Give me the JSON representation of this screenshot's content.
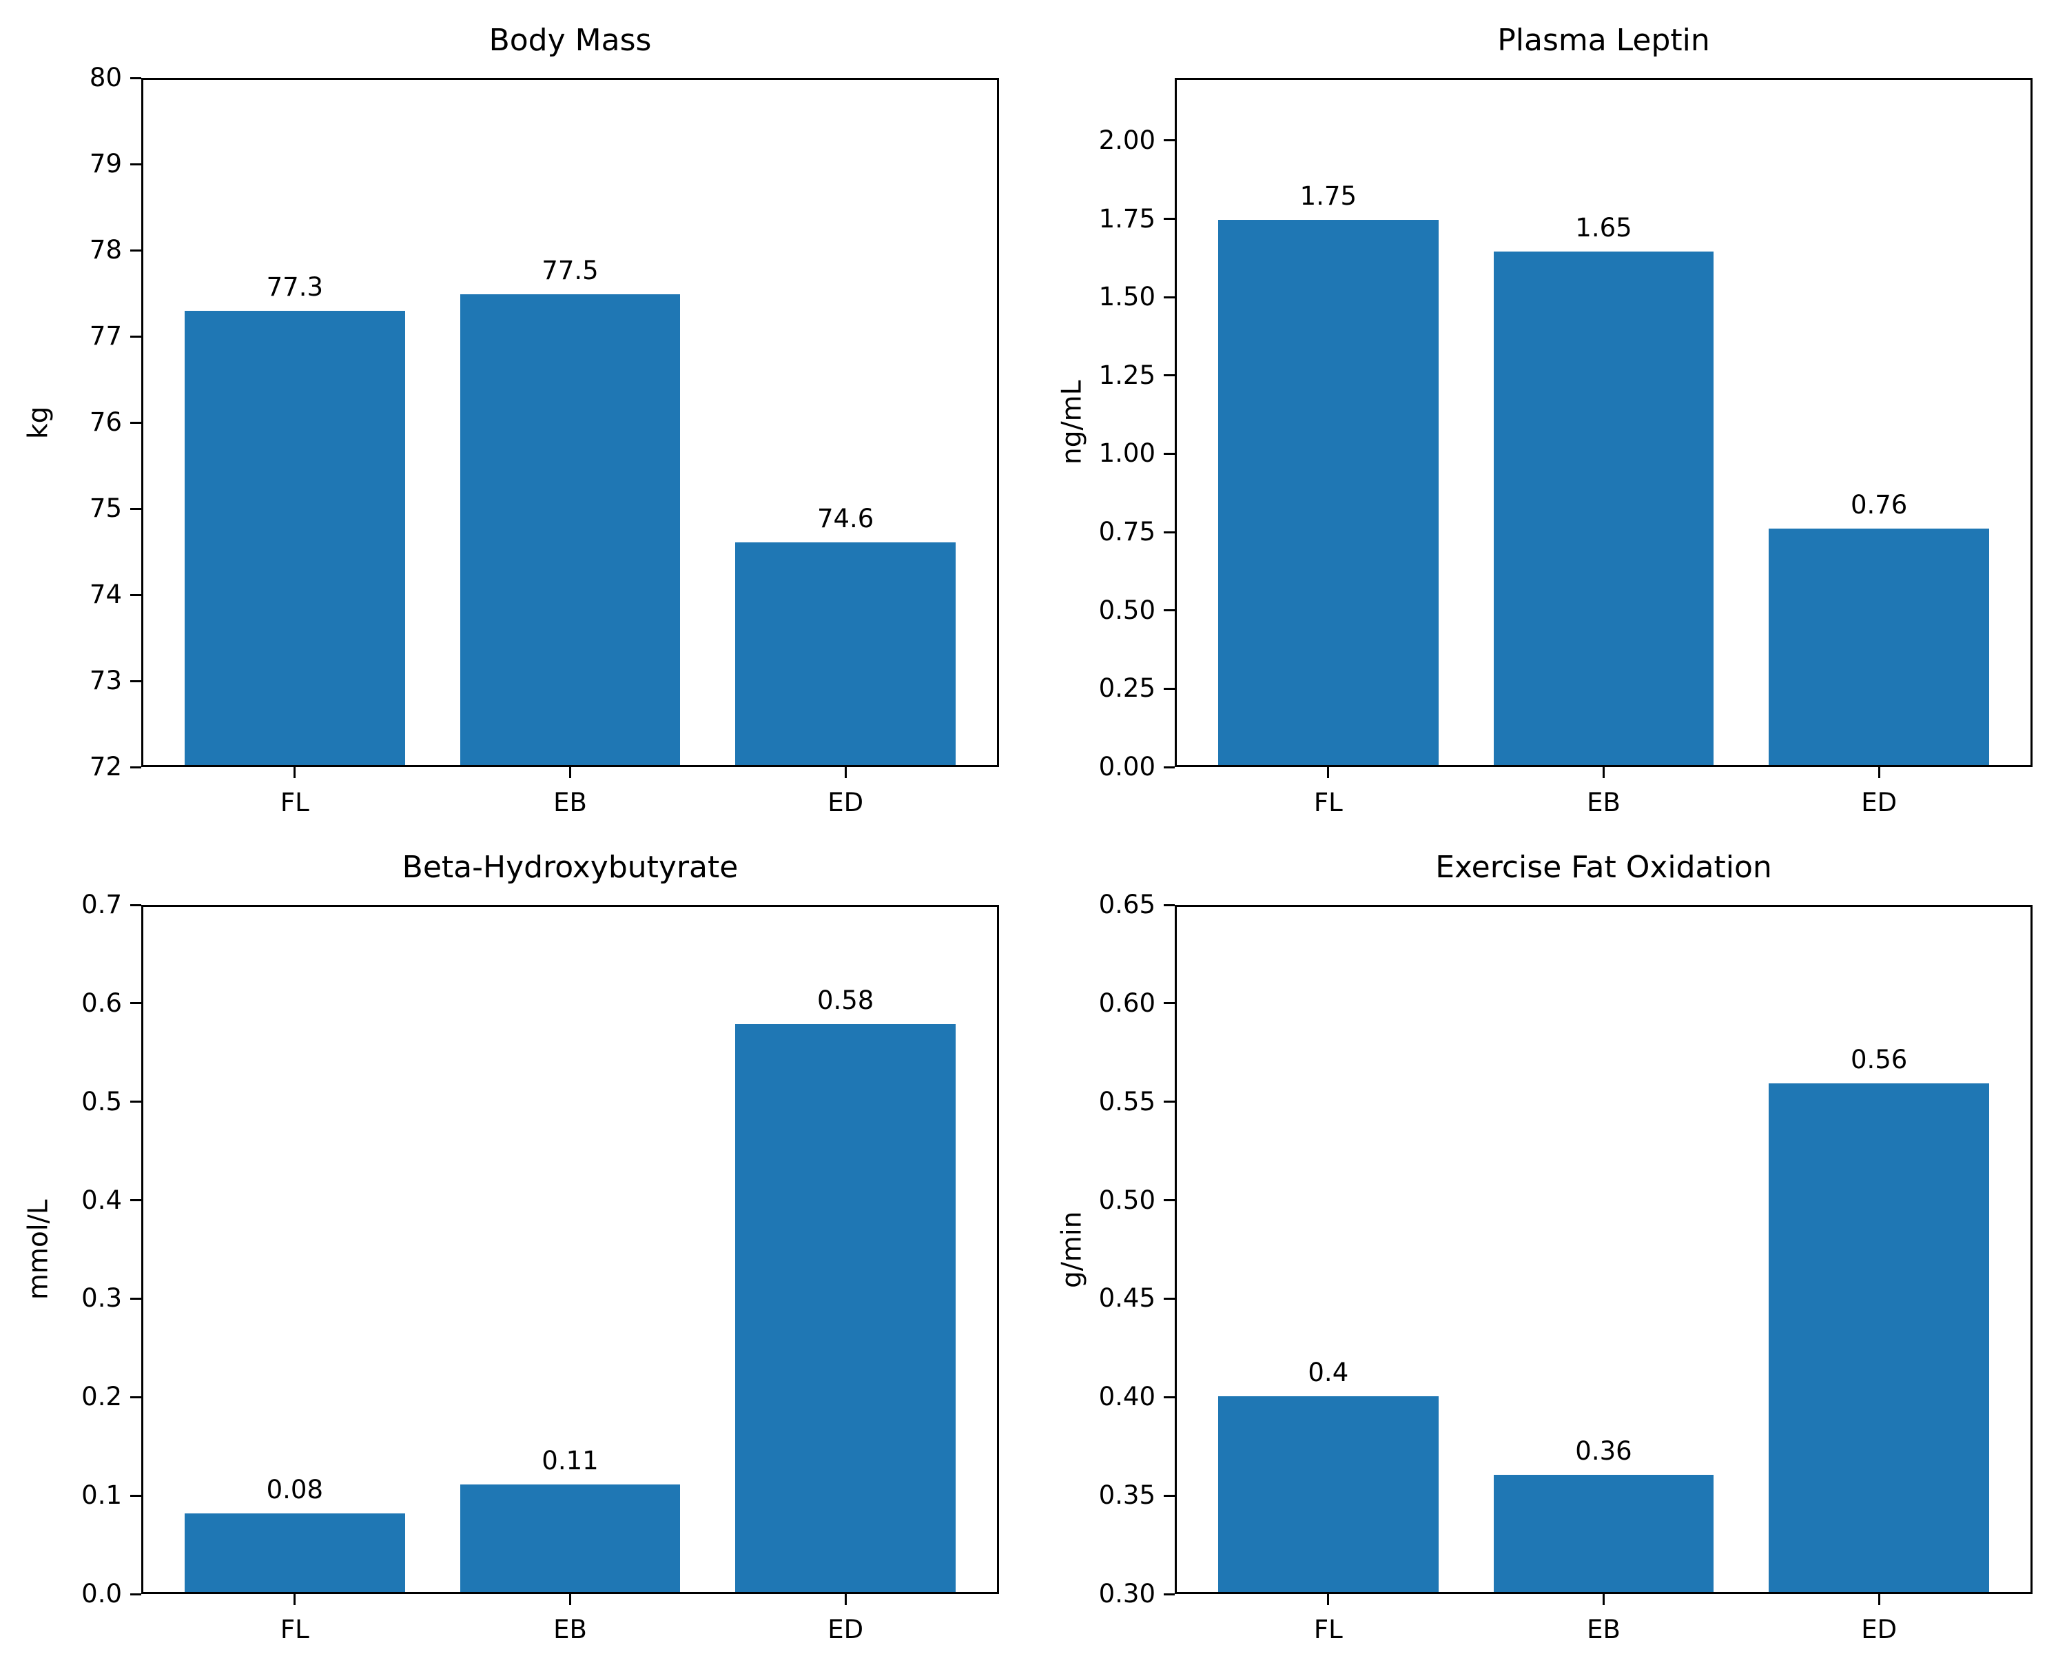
{
  "figure": {
    "background_color": "#ffffff",
    "bar_color": "#1f77b4",
    "axis_color": "#000000",
    "text_color": "#000000"
  },
  "chart_data": [
    {
      "type": "bar",
      "title": "Body Mass",
      "xlabel": "",
      "ylabel": "kg",
      "categories": [
        "FL",
        "EB",
        "ED"
      ],
      "values": [
        77.3,
        77.5,
        74.6
      ],
      "bar_value_labels": [
        "77.3",
        "77.5",
        "74.6"
      ],
      "ylim": [
        72,
        80
      ],
      "ytick_labels": [
        "72",
        "73",
        "74",
        "75",
        "76",
        "77",
        "78",
        "79",
        "80"
      ],
      "grid": false,
      "legend": "none"
    },
    {
      "type": "bar",
      "title": "Plasma Leptin",
      "xlabel": "",
      "ylabel": "ng/mL",
      "categories": [
        "FL",
        "EB",
        "ED"
      ],
      "values": [
        1.75,
        1.65,
        0.76
      ],
      "bar_value_labels": [
        "1.75",
        "1.65",
        "0.76"
      ],
      "ylim": [
        0,
        2.2
      ],
      "ytick_labels": [
        "0.00",
        "0.25",
        "0.50",
        "0.75",
        "1.00",
        "1.25",
        "1.50",
        "1.75",
        "2.00"
      ],
      "grid": false,
      "legend": "none"
    },
    {
      "type": "bar",
      "title": "Beta-Hydroxybutyrate",
      "xlabel": "",
      "ylabel": "mmol/L",
      "categories": [
        "FL",
        "EB",
        "ED"
      ],
      "values": [
        0.08,
        0.11,
        0.58
      ],
      "bar_value_labels": [
        "0.08",
        "0.11",
        "0.58"
      ],
      "ylim": [
        0,
        0.7
      ],
      "ytick_labels": [
        "0.0",
        "0.1",
        "0.2",
        "0.3",
        "0.4",
        "0.5",
        "0.6",
        "0.7"
      ],
      "grid": false,
      "legend": "none"
    },
    {
      "type": "bar",
      "title": "Exercise Fat Oxidation",
      "xlabel": "",
      "ylabel": "g/min",
      "categories": [
        "FL",
        "EB",
        "ED"
      ],
      "values": [
        0.4,
        0.36,
        0.56
      ],
      "bar_value_labels": [
        "0.4",
        "0.36",
        "0.56"
      ],
      "ylim": [
        0.3,
        0.65
      ],
      "ytick_labels": [
        "0.30",
        "0.35",
        "0.40",
        "0.45",
        "0.50",
        "0.55",
        "0.60",
        "0.65"
      ],
      "grid": false,
      "legend": "none"
    }
  ]
}
